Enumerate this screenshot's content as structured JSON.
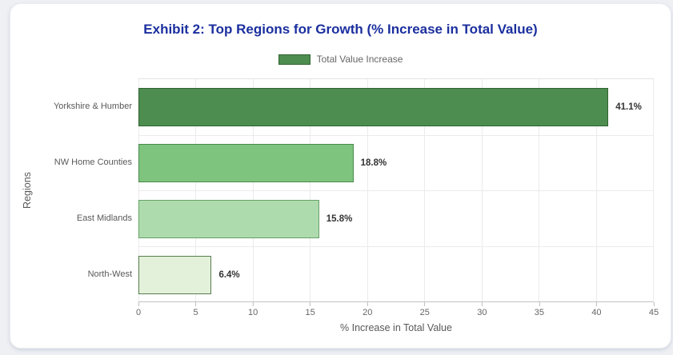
{
  "page": {
    "background_color": "#eef0f4",
    "card_background": "#ffffff"
  },
  "title": {
    "text": "Exhibit 2: Top Regions for Growth (% Increase in Total Value)",
    "color": "#1b2f9e"
  },
  "legend": {
    "label": "Total Value Increase",
    "swatch_fill": "#4e8d50",
    "swatch_border": "#2f6331",
    "text_color": "#666666"
  },
  "chart_data": {
    "type": "bar",
    "orientation": "horizontal",
    "title": "Exhibit 2: Top Regions for Growth (% Increase in Total Value)",
    "series_name": "Total Value Increase",
    "categories": [
      "Yorkshire & Humber",
      "NW Home Counties",
      "East Midlands",
      "North-West"
    ],
    "values": [
      41.1,
      18.8,
      15.8,
      6.4
    ],
    "value_labels": [
      "41.1%",
      "18.8%",
      "15.8%",
      "6.4%"
    ],
    "bar_fill_colors": [
      "#4e8d50",
      "#7ec47f",
      "#aedbae",
      "#e4f1da"
    ],
    "bar_border_colors": [
      "#2f6331",
      "#4a8a4c",
      "#66a168",
      "#567d4f"
    ],
    "xlabel": "% Increase in Total Value",
    "ylabel": "Regions",
    "xlim": [
      0,
      45
    ],
    "xticks": [
      0,
      5,
      10,
      15,
      20,
      25,
      30,
      35,
      40,
      45
    ],
    "grid": true,
    "legend_position": "top",
    "axis_text_color": "#595959",
    "tick_text_color": "#666666",
    "value_text_color": "#333333",
    "gridline_color": "#ebebeb"
  }
}
